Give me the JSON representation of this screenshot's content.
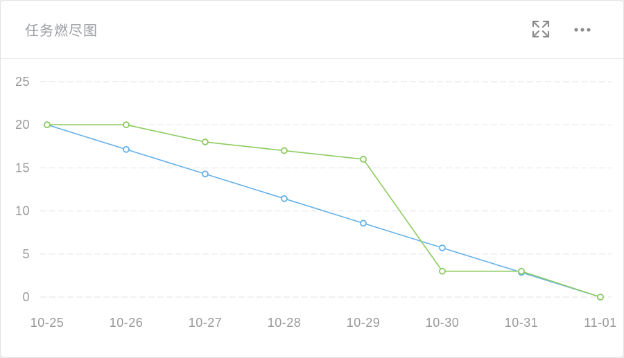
{
  "card": {
    "title": "任务燃尽图",
    "icons": {
      "expand": "expand-arrows-icon",
      "more": "ellipsis-icon"
    }
  },
  "colors": {
    "series_blue": "#64b1e9",
    "series_green": "#8ccb5e",
    "axis_label": "#999999",
    "grid_line": "#ececec",
    "icon_gray": "#8b8b8b",
    "title_gray": "#9b9ea3"
  },
  "chart_data": {
    "type": "line",
    "title": "任务燃尽图",
    "categories": [
      "10-25",
      "10-26",
      "10-27",
      "10-28",
      "10-29",
      "10-30",
      "10-31",
      "11-01"
    ],
    "series": [
      {
        "name": "series-1-blue",
        "color": "#64b1e9",
        "values": [
          20,
          17.14,
          14.29,
          11.43,
          8.57,
          5.71,
          2.86,
          0
        ]
      },
      {
        "name": "series-2-green",
        "color": "#8ccb5e",
        "values": [
          20,
          20,
          18,
          17,
          16,
          3,
          3,
          0
        ]
      }
    ],
    "xlabel": "",
    "ylabel": "",
    "ylim": [
      0,
      25
    ],
    "yticks": [
      0,
      5,
      10,
      15,
      20,
      25
    ],
    "grid": true,
    "grid_style": "dashed",
    "legend": false,
    "marker": "hollow-circle"
  }
}
